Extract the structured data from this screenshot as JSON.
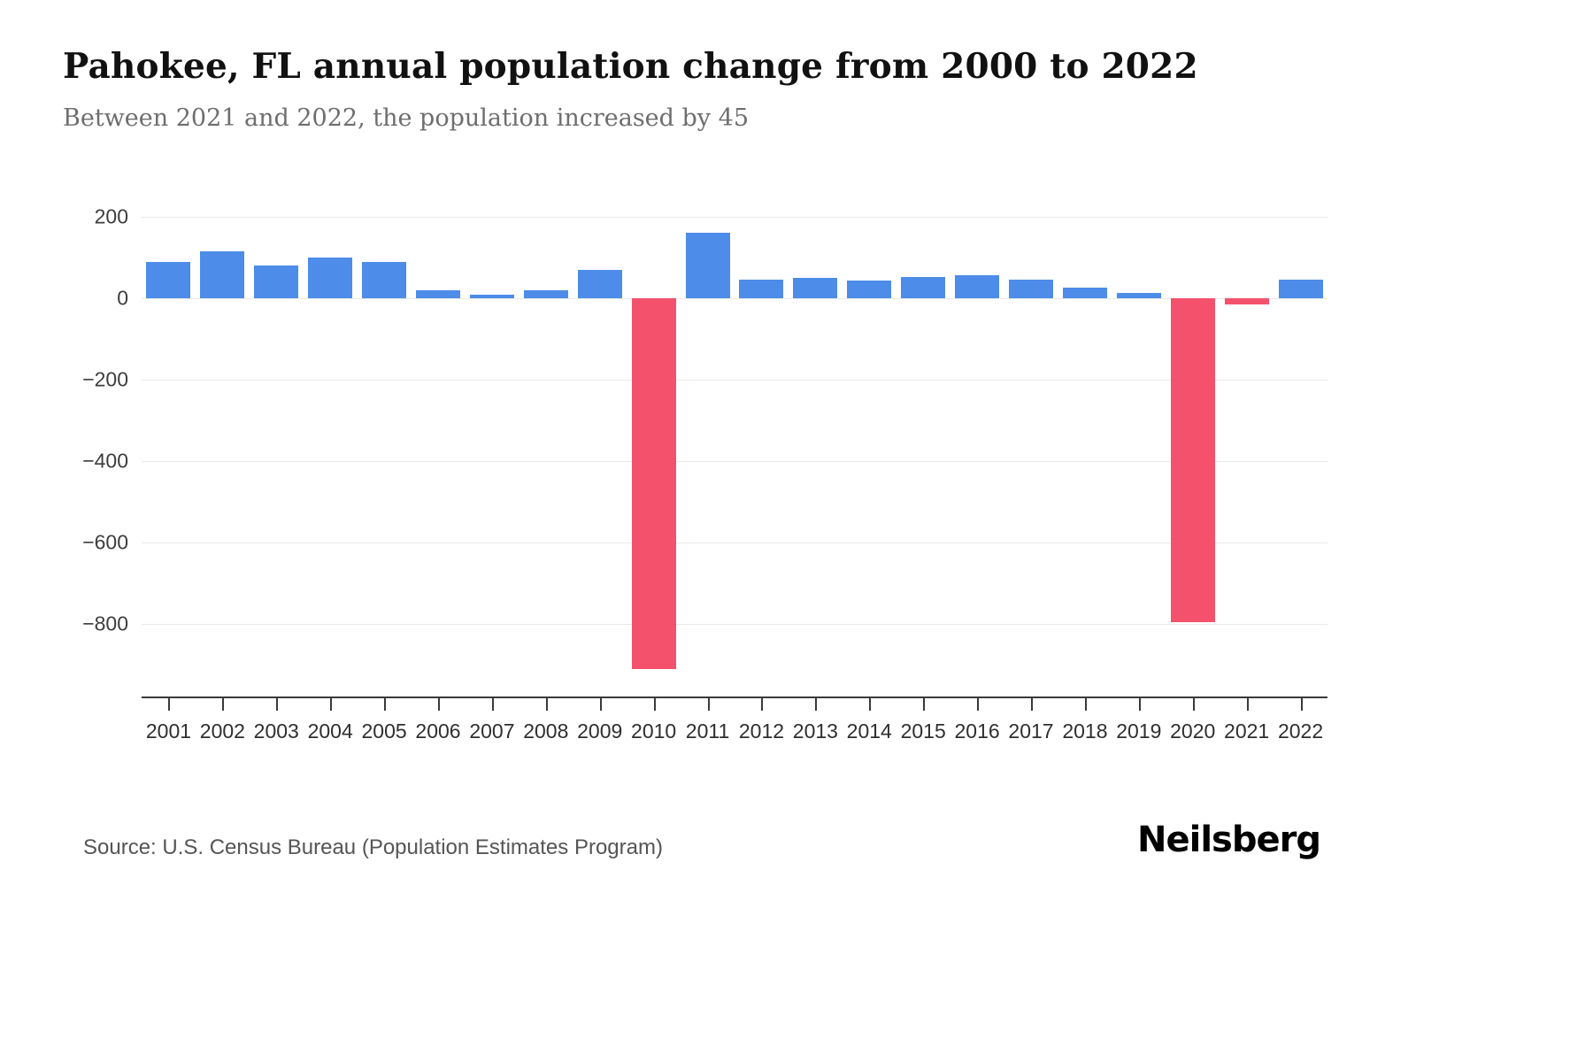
{
  "header": {
    "title": "Pahokee, FL annual population change from 2000 to 2022",
    "subtitle": "Between 2021 and 2022, the population increased by 45"
  },
  "footer": {
    "source": "Source: U.S. Census Bureau (Population Estimates Program)",
    "logo": "Neilsberg"
  },
  "colors": {
    "positive_bar": "#4d8ce8",
    "negative_bar": "#f4516c",
    "gridline": "#e9e9e9",
    "axis": "#3a3a3a",
    "tick_label": "#3d3d3d"
  },
  "chart_data": {
    "type": "bar",
    "title": "Pahokee, FL annual population change from 2000 to 2022",
    "subtitle": "Between 2021 and 2022, the population increased by 45",
    "xlabel": "",
    "ylabel": "",
    "categories": [
      "2001",
      "2002",
      "2003",
      "2004",
      "2005",
      "2006",
      "2007",
      "2008",
      "2009",
      "2010",
      "2011",
      "2012",
      "2013",
      "2014",
      "2015",
      "2016",
      "2017",
      "2018",
      "2019",
      "2020",
      "2021",
      "2022"
    ],
    "values": [
      90,
      115,
      80,
      100,
      90,
      20,
      8,
      20,
      70,
      -910,
      160,
      45,
      50,
      43,
      52,
      57,
      45,
      27,
      12,
      -795,
      -15,
      45
    ],
    "yticks": [
      200,
      0,
      -200,
      -400,
      -600,
      -800
    ],
    "ylim": [
      -980,
      200
    ],
    "grid": true,
    "legend": false,
    "bar_color_rule": "blue for positive values, pink for negative values"
  }
}
